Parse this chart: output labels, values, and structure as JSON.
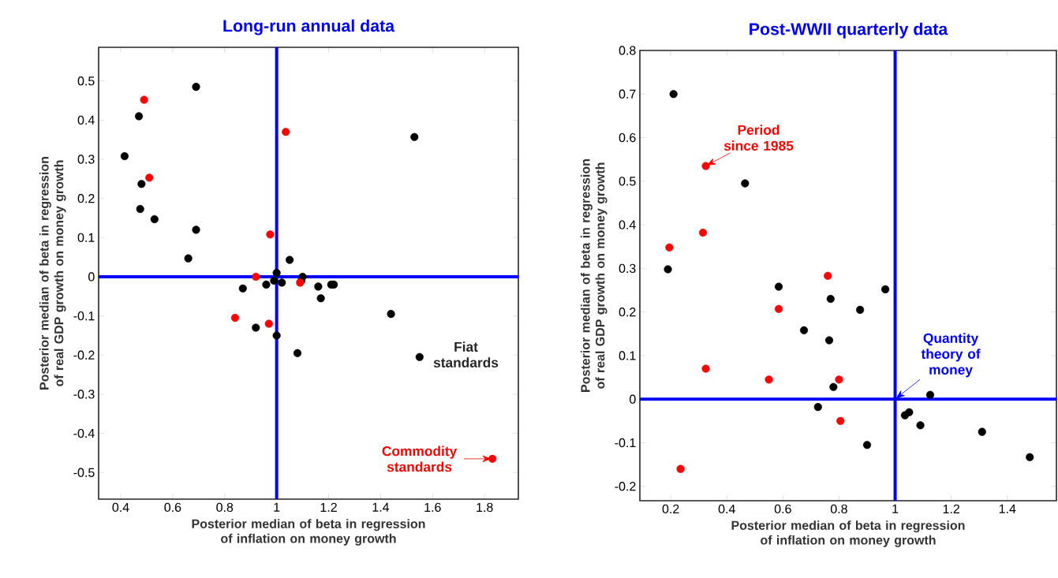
{
  "chart_data": [
    {
      "type": "scatter",
      "title": "Long-run annual data",
      "xlabel": "Posterior median of beta in regression of inflation on money growth",
      "ylabel": "Posterior median of beta in regression of real GDP growth on money growth",
      "xlim": [
        0.315,
        1.93
      ],
      "ylim": [
        -0.568,
        0.586
      ],
      "xticks": [
        0.4,
        0.6,
        0.8,
        1,
        1.2,
        1.4,
        1.6,
        1.8
      ],
      "yticks": [
        -0.5,
        -0.4,
        -0.3,
        -0.2,
        -0.1,
        0,
        0.1,
        0.2,
        0.3,
        0.4,
        0.5
      ],
      "marker": "circle",
      "series": [
        {
          "color": "#000000",
          "x": [
            0.69,
            0.47,
            0.415,
            0.48,
            0.475,
            0.53,
            0.69,
            0.66,
            1.53,
            1.05,
            1.0,
            0.99,
            0.96,
            1.02,
            1.1,
            1.095,
            1.16,
            1.21,
            1.22,
            0.87,
            1.17,
            1.44,
            0.92,
            1.0,
            1.08,
            1.55
          ],
          "values": [
            0.485,
            0.41,
            0.308,
            0.237,
            0.173,
            0.147,
            0.12,
            0.047,
            0.357,
            0.043,
            0.01,
            -0.01,
            -0.02,
            -0.015,
            0.0,
            -0.01,
            -0.025,
            -0.02,
            -0.02,
            -0.03,
            -0.055,
            -0.095,
            -0.13,
            -0.15,
            -0.195,
            -0.205
          ]
        },
        {
          "color": "#ff0000",
          "x": [
            0.49,
            0.51,
            1.035,
            0.975,
            0.92,
            1.09,
            0.84,
            0.97,
            1.83
          ],
          "values": [
            0.452,
            0.253,
            0.37,
            0.108,
            0.0,
            -0.015,
            -0.105,
            -0.12,
            -0.465
          ]
        }
      ],
      "ref_lines": [
        {
          "axis": "x",
          "value": 1,
          "color": "#0000ff"
        },
        {
          "axis": "y",
          "value": 0,
          "color": "#0000ff"
        }
      ],
      "annotations": [
        "Fiat standards",
        {
          "text": "Commodity standards",
          "x": 1.83,
          "y": -0.465
        }
      ]
    },
    {
      "type": "scatter",
      "title": "Post-WWII quarterly data",
      "xlabel": "Posterior median of beta in regression of inflation on money growth",
      "ylabel": "Posterior median of beta in regression of real GDP growth on money growth",
      "xlim": [
        0.09,
        1.575
      ],
      "ylim": [
        -0.233,
        0.8
      ],
      "xticks": [
        0.2,
        0.4,
        0.6,
        0.8,
        1,
        1.2,
        1.4
      ],
      "yticks": [
        -0.2,
        -0.1,
        0,
        0.1,
        0.2,
        0.3,
        0.4,
        0.5,
        0.6,
        0.7,
        0.8
      ],
      "marker": "circle",
      "series": [
        {
          "color": "#000000",
          "x": [
            0.21,
            0.465,
            0.19,
            0.585,
            0.77,
            0.875,
            0.965,
            0.675,
            0.765,
            0.78,
            0.725,
            1.125,
            1.035,
            1.05,
            1.09,
            0.9,
            1.31,
            1.48
          ],
          "values": [
            0.7,
            0.495,
            0.298,
            0.258,
            0.23,
            0.205,
            0.252,
            0.158,
            0.135,
            0.028,
            -0.018,
            0.01,
            -0.037,
            -0.03,
            -0.06,
            -0.105,
            -0.075,
            -0.133
          ]
        },
        {
          "color": "#ff0000",
          "x": [
            0.325,
            0.315,
            0.195,
            0.76,
            0.585,
            0.325,
            0.55,
            0.8,
            0.805,
            0.235
          ],
          "values": [
            0.535,
            0.382,
            0.348,
            0.283,
            0.207,
            0.07,
            0.045,
            0.045,
            -0.05,
            -0.16
          ]
        }
      ],
      "ref_lines": [
        {
          "axis": "x",
          "value": 1,
          "color": "#0000ff"
        },
        {
          "axis": "y",
          "value": 0,
          "color": "#0000ff"
        }
      ],
      "annotations": [
        {
          "text": "Period since 1985",
          "x": 0.325,
          "y": 0.535
        },
        {
          "text": "Quantity theory of money",
          "x": 1,
          "y": 0
        }
      ]
    }
  ]
}
